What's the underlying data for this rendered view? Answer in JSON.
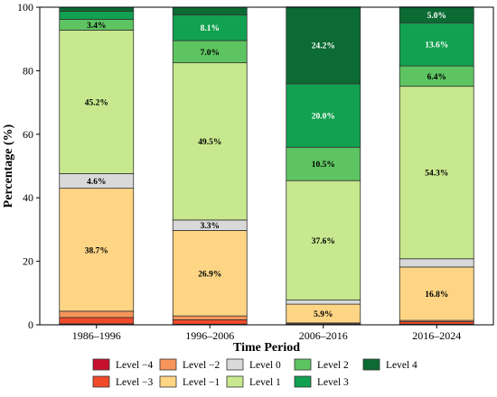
{
  "chart_data": {
    "type": "bar",
    "stacked": true,
    "xlabel": "Time Period",
    "ylabel": "Percentage (%)",
    "ylim": [
      0,
      100
    ],
    "yticks": [
      0,
      20,
      40,
      60,
      80,
      100
    ],
    "grid": false,
    "legend_position": "bottom",
    "categories": [
      "1986–1996",
      "1996–2006",
      "2006–2016",
      "2016–2024"
    ],
    "series": [
      {
        "name": "Level −4",
        "color": "#c8102e",
        "values": [
          0.3,
          0.2,
          0.1,
          0.2
        ]
      },
      {
        "name": "Level −3",
        "color": "#f04a2a",
        "values": [
          2.0,
          1.4,
          0.2,
          0.8
        ]
      },
      {
        "name": "Level −2",
        "color": "#f7955a",
        "values": [
          2.0,
          1.2,
          0.3,
          0.4
        ]
      },
      {
        "name": "Level −1",
        "color": "#fdd585",
        "values": [
          38.7,
          26.9,
          5.9,
          16.8
        ]
      },
      {
        "name": "Level 0",
        "color": "#d9d9d9",
        "values": [
          4.6,
          3.3,
          1.3,
          2.6
        ]
      },
      {
        "name": "Level 1",
        "color": "#c7e88e",
        "values": [
          45.2,
          49.5,
          37.6,
          54.3
        ]
      },
      {
        "name": "Level 2",
        "color": "#5ec461",
        "values": [
          3.4,
          7.0,
          10.5,
          6.4
        ]
      },
      {
        "name": "Level 3",
        "color": "#12a150",
        "values": [
          2.5,
          8.1,
          20.0,
          13.6
        ]
      },
      {
        "name": "Level 4",
        "color": "#0b6b33",
        "values": [
          1.3,
          2.4,
          24.2,
          5.0
        ]
      }
    ],
    "data_labels": [
      {
        "category": 0,
        "series": 3,
        "text": "38.7%"
      },
      {
        "category": 0,
        "series": 4,
        "text": "4.6%"
      },
      {
        "category": 0,
        "series": 5,
        "text": "45.2%"
      },
      {
        "category": 0,
        "series": 6,
        "text": "3.4%"
      },
      {
        "category": 1,
        "series": 3,
        "text": "26.9%"
      },
      {
        "category": 1,
        "series": 4,
        "text": "3.3%"
      },
      {
        "category": 1,
        "series": 5,
        "text": "49.5%"
      },
      {
        "category": 1,
        "series": 6,
        "text": "7.0%"
      },
      {
        "category": 1,
        "series": 7,
        "text": "8.1%"
      },
      {
        "category": 2,
        "series": 3,
        "text": "5.9%"
      },
      {
        "category": 2,
        "series": 5,
        "text": "37.6%"
      },
      {
        "category": 2,
        "series": 6,
        "text": "10.5%"
      },
      {
        "category": 2,
        "series": 7,
        "text": "20.0%"
      },
      {
        "category": 2,
        "series": 8,
        "text": "24.2%"
      },
      {
        "category": 3,
        "series": 3,
        "text": "16.8%"
      },
      {
        "category": 3,
        "series": 5,
        "text": "54.3%"
      },
      {
        "category": 3,
        "series": 6,
        "text": "6.4%"
      },
      {
        "category": 3,
        "series": 7,
        "text": "13.6%"
      },
      {
        "category": 3,
        "series": 8,
        "text": "5.0%"
      }
    ],
    "legend_order": [
      0,
      2,
      4,
      6,
      8,
      1,
      3,
      5,
      7
    ]
  }
}
